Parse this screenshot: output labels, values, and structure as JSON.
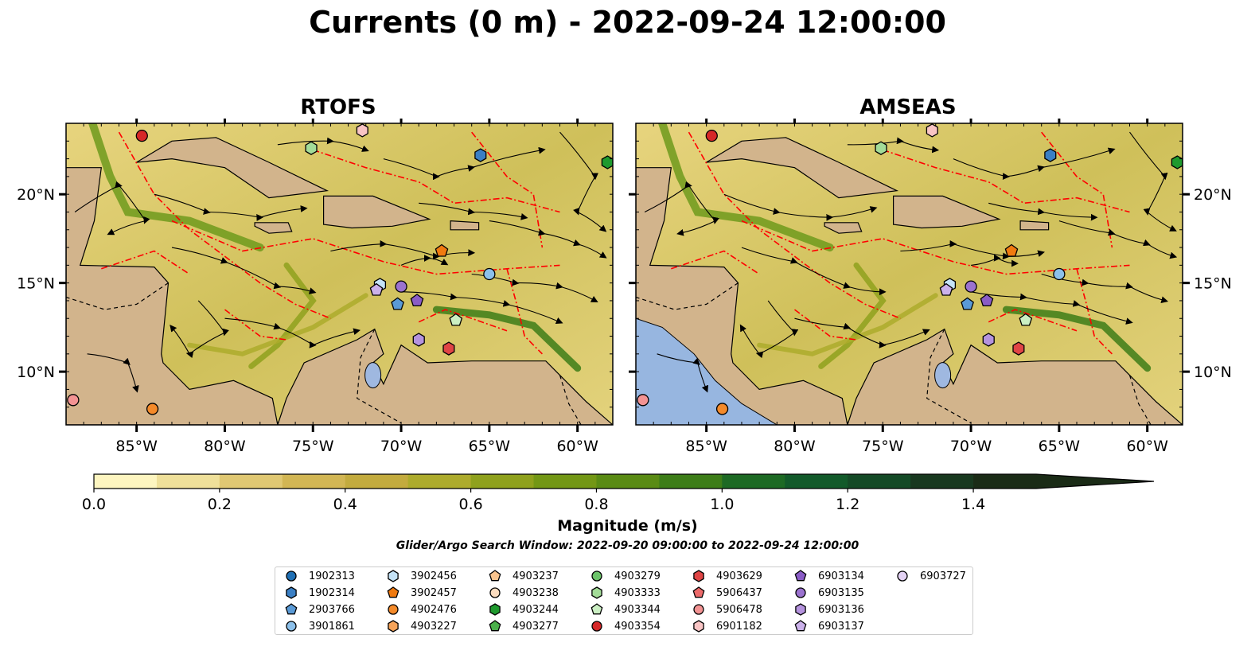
{
  "title": "Currents (0 m) - 2022-09-24 12:00:00",
  "panels": [
    {
      "title": "RTOFS"
    },
    {
      "title": "AMSEAS"
    }
  ],
  "colors": {
    "land": "#d2b48c",
    "water_land": "#9fb8e0",
    "ocean_low": "#fdf5c0",
    "ocean_high": "#1a2e12",
    "eez": "#ff0000",
    "streamlines": "#000000"
  },
  "chart_data": {
    "type": "heatmap",
    "projection": "PlateCarree",
    "variable": "surface current magnitude with streamlines",
    "x_ticks": [
      "85°W",
      "80°W",
      "75°W",
      "70°W",
      "65°W",
      "60°W"
    ],
    "x_tick_values": [
      -85,
      -80,
      -75,
      -70,
      -65,
      -60
    ],
    "y_ticks": [
      "20°N",
      "15°N",
      "10°N"
    ],
    "y_tick_values": [
      20,
      15,
      10
    ],
    "xlim": [
      -89,
      -58
    ],
    "ylim": [
      7,
      24
    ],
    "colorbar": {
      "label": "Magnitude (m/s)",
      "ticks": [
        "0.0",
        "0.2",
        "0.4",
        "0.6",
        "0.8",
        "1.0",
        "1.2",
        "1.4"
      ],
      "tick_values": [
        0,
        0.2,
        0.4,
        0.6,
        0.8,
        1.0,
        1.2,
        1.4
      ],
      "range": [
        0,
        1.5
      ],
      "extend": "max",
      "levels": 15,
      "colors": [
        "#fdf5c0",
        "#efe09a",
        "#e0c873",
        "#d2b654",
        "#c3ab3e",
        "#adab2c",
        "#8fa11d",
        "#739715",
        "#5a8b14",
        "#3d7d18",
        "#1d6a24",
        "#125a2a",
        "#144a26",
        "#18381f",
        "#1a2b16"
      ]
    },
    "search_window": "Glider/Argo Search Window: 2022-09-20 09:00:00 to 2022-09-24 12:00:00",
    "platforms": [
      {
        "id": "1902313",
        "marker": "circle",
        "color": "#1f6fb4"
      },
      {
        "id": "1902314",
        "marker": "hexagon",
        "color": "#3a7fc4"
      },
      {
        "id": "2903766",
        "marker": "pentagon",
        "color": "#5a9ad6"
      },
      {
        "id": "3901861",
        "marker": "circle",
        "color": "#8cc0ea"
      },
      {
        "id": "3902456",
        "marker": "hexagon",
        "color": "#c5e3f7"
      },
      {
        "id": "3902457",
        "marker": "pentagon",
        "color": "#f07a10"
      },
      {
        "id": "4902476",
        "marker": "circle",
        "color": "#f48a2a"
      },
      {
        "id": "4903227",
        "marker": "hexagon",
        "color": "#f7a45a"
      },
      {
        "id": "4903237",
        "marker": "pentagon",
        "color": "#f9c48e"
      },
      {
        "id": "4903238",
        "marker": "circle",
        "color": "#fbdcbf"
      },
      {
        "id": "4903244",
        "marker": "hexagon",
        "color": "#1f9a2e"
      },
      {
        "id": "4903277",
        "marker": "pentagon",
        "color": "#4bb04b"
      },
      {
        "id": "4903279",
        "marker": "circle",
        "color": "#6cc46a"
      },
      {
        "id": "4903333",
        "marker": "hexagon",
        "color": "#a3dc98"
      },
      {
        "id": "4903344",
        "marker": "pentagon",
        "color": "#cbefc3"
      },
      {
        "id": "4903354",
        "marker": "circle",
        "color": "#d62728"
      },
      {
        "id": "4903629",
        "marker": "hexagon",
        "color": "#e04545"
      },
      {
        "id": "5906437",
        "marker": "pentagon",
        "color": "#ec6a6a"
      },
      {
        "id": "5906478",
        "marker": "circle",
        "color": "#f39393"
      },
      {
        "id": "6901182",
        "marker": "hexagon",
        "color": "#f9c5c5"
      },
      {
        "id": "6903134",
        "marker": "pentagon",
        "color": "#8a5cc6"
      },
      {
        "id": "6903135",
        "marker": "circle",
        "color": "#9b72cf"
      },
      {
        "id": "6903136",
        "marker": "hexagon",
        "color": "#b593de"
      },
      {
        "id": "6903137",
        "marker": "pentagon",
        "color": "#cbb1ea"
      },
      {
        "id": "6903727",
        "marker": "circle",
        "color": "#e3d2f4"
      }
    ],
    "platform_positions": [
      {
        "id": "4903354",
        "lon": -84.7,
        "lat": 23.3
      },
      {
        "id": "6901182",
        "lon": -72.2,
        "lat": 23.6
      },
      {
        "id": "4903333",
        "lon": -75.1,
        "lat": 22.6
      },
      {
        "id": "1902314",
        "lon": -65.5,
        "lat": 22.2
      },
      {
        "id": "4903244",
        "lon": -58.3,
        "lat": 21.8
      },
      {
        "id": "3902457",
        "lon": -67.7,
        "lat": 16.8
      },
      {
        "id": "3901861",
        "lon": -65.0,
        "lat": 15.5
      },
      {
        "id": "3902456",
        "lon": -71.2,
        "lat": 14.9
      },
      {
        "id": "6903135",
        "lon": -70.0,
        "lat": 14.8
      },
      {
        "id": "6903137",
        "lon": -71.4,
        "lat": 14.6
      },
      {
        "id": "2903766",
        "lon": -70.2,
        "lat": 13.8
      },
      {
        "id": "6903134",
        "lon": -69.1,
        "lat": 14.0
      },
      {
        "id": "4903344",
        "lon": -66.9,
        "lat": 12.9
      },
      {
        "id": "6903136",
        "lon": -69.0,
        "lat": 11.8
      },
      {
        "id": "4903629",
        "lon": -67.3,
        "lat": 11.3
      },
      {
        "id": "5906478",
        "lon": -88.6,
        "lat": 8.4
      },
      {
        "id": "4902476",
        "lon": -84.1,
        "lat": 7.9
      }
    ]
  }
}
